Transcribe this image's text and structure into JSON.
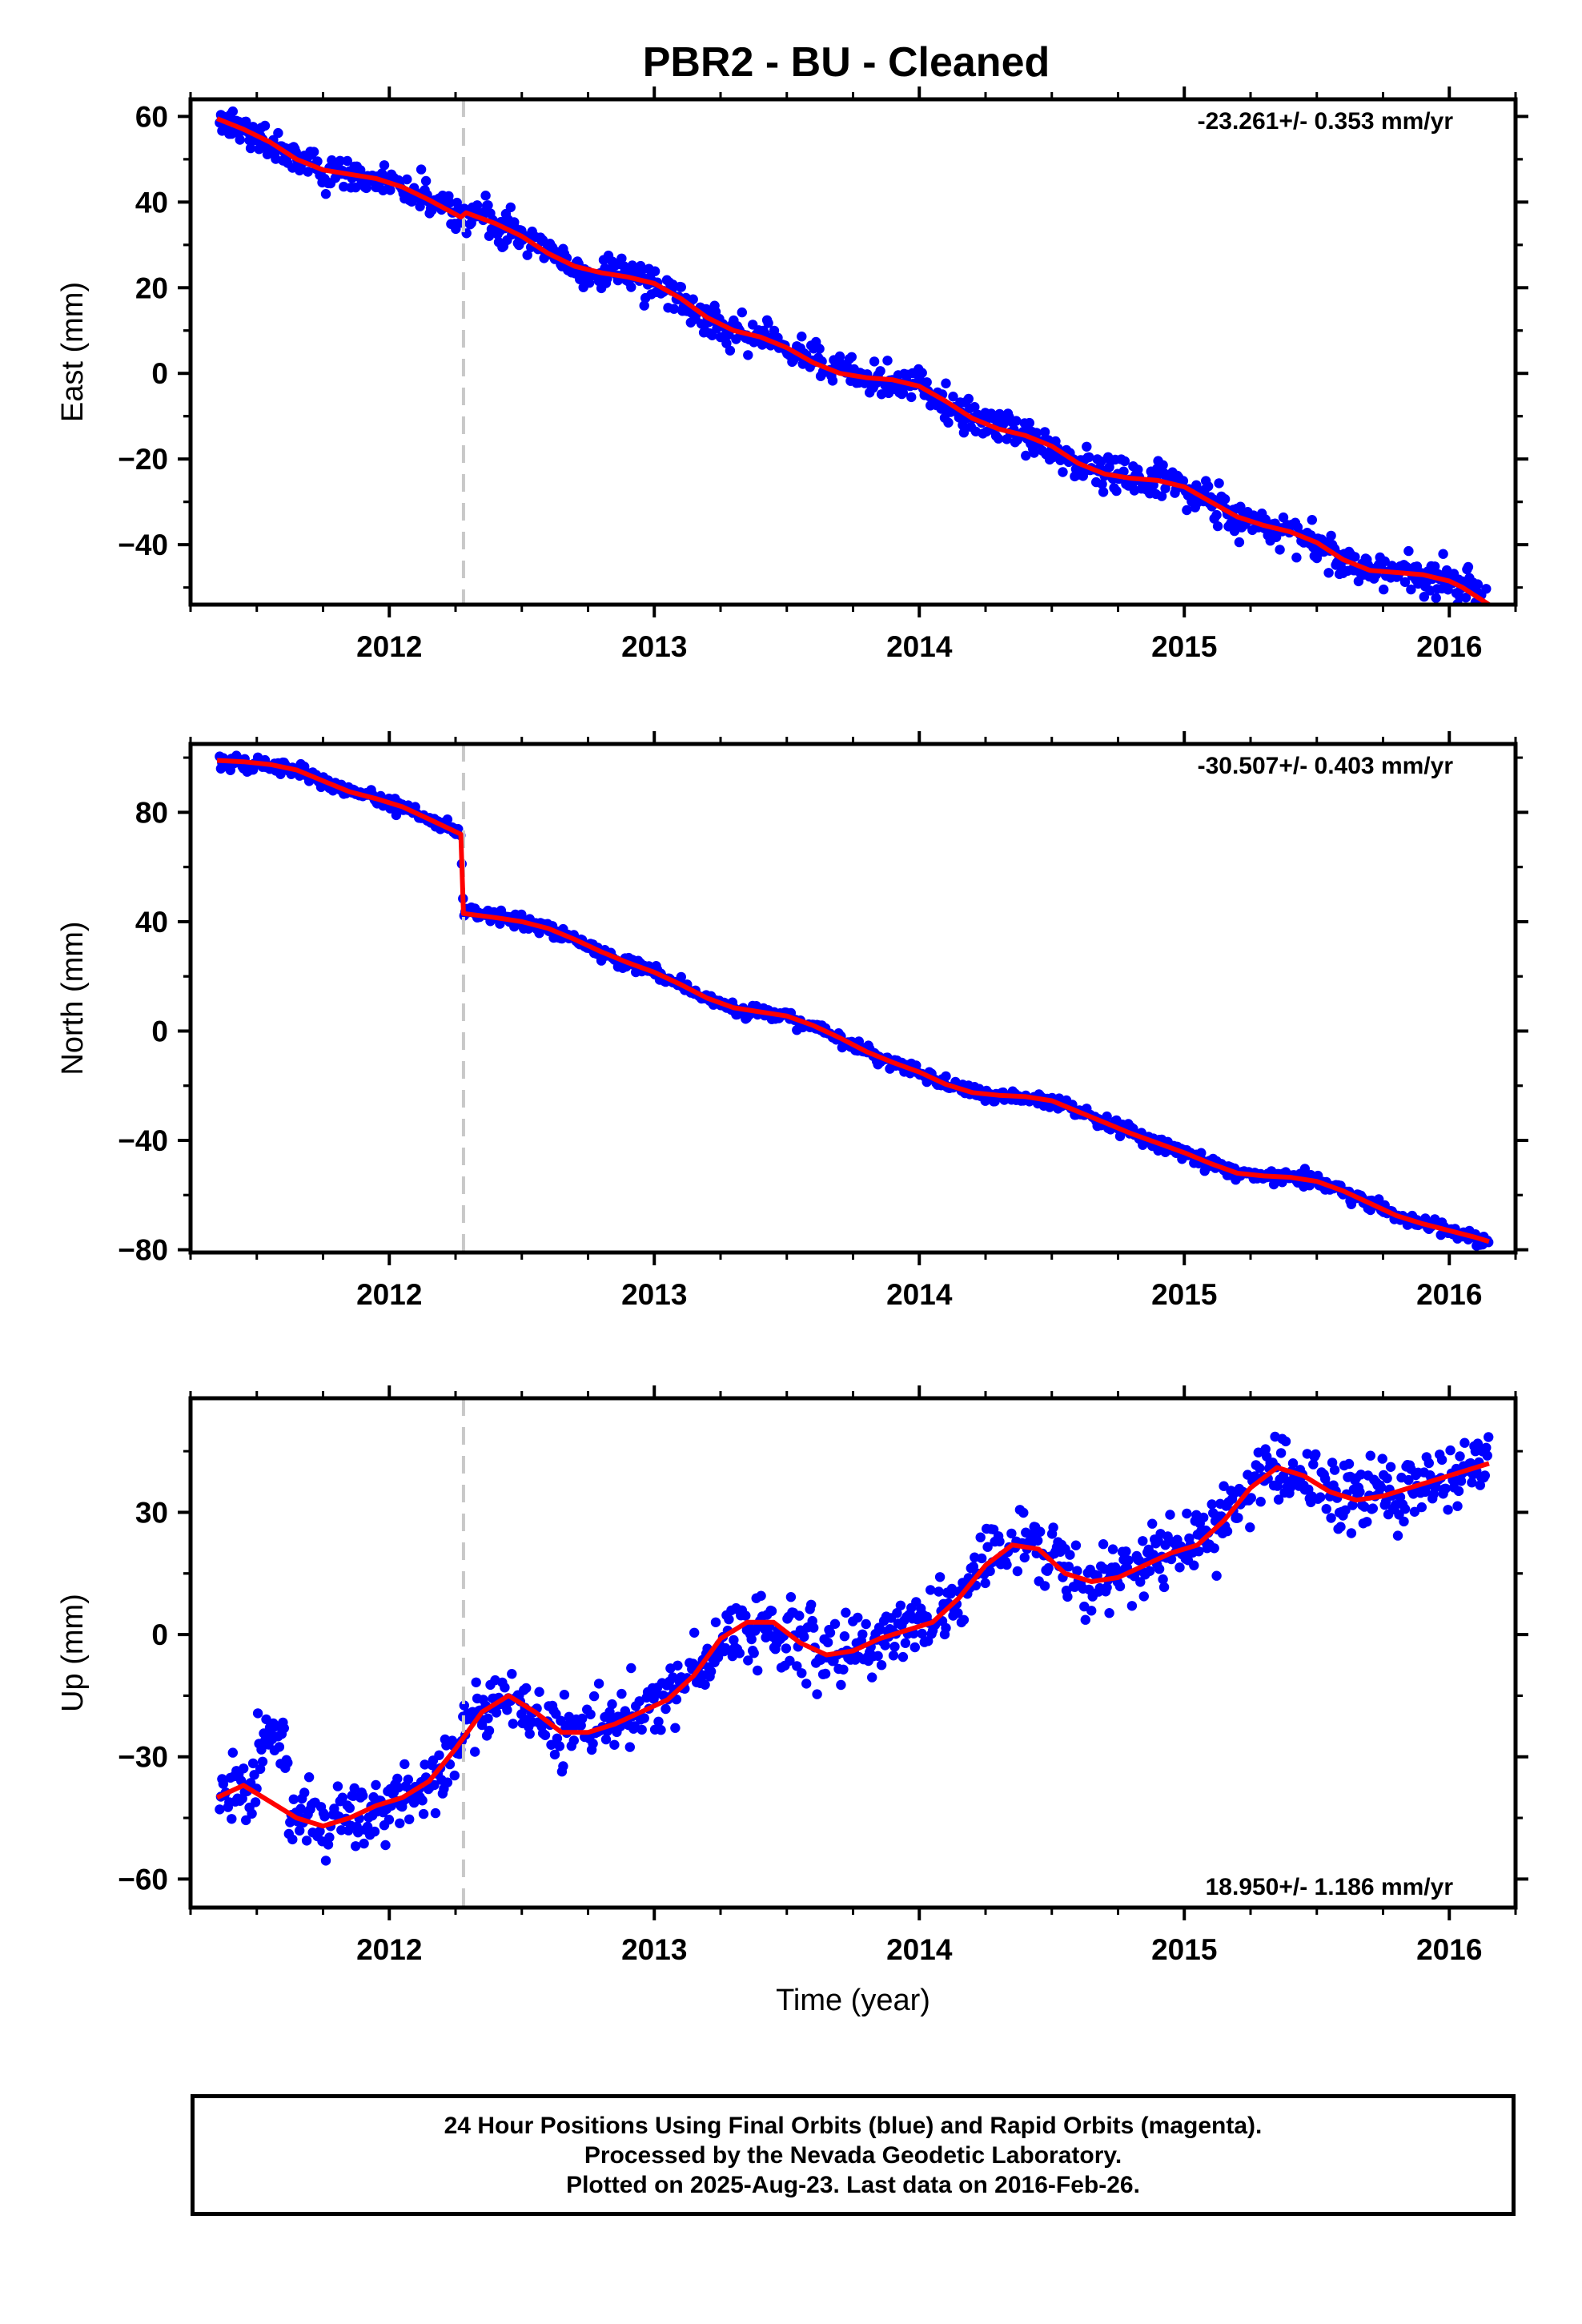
{
  "title": "PBR2  - BU - Cleaned",
  "colors": {
    "final_orbits": "#0000ff",
    "model_fit": "#ff0000",
    "event_line": "#c8c8c8",
    "frame": "#000000"
  },
  "chart_data": [
    {
      "type": "scatter",
      "name": "east",
      "ylabel": "East (mm)",
      "rate_label": "-23.261+/- 0.353 mm/yr",
      "rate_position": "top-right",
      "xlim": [
        2011.25,
        2016.25
      ],
      "ylim": [
        -54,
        64
      ],
      "yticks": [
        -40,
        -20,
        0,
        20,
        40,
        60
      ],
      "xticks": [
        2012,
        2013,
        2014,
        2015,
        2016
      ],
      "tick_labels": {
        "y": [
          "−40",
          "−20",
          "0",
          "20",
          "40",
          "60"
        ],
        "x": [
          "2012",
          "2013",
          "2014",
          "2015",
          "2016"
        ]
      },
      "event_line_x": 2012.28,
      "series": [
        {
          "role": "model_fit",
          "x": [
            2011.35,
            2011.45,
            2011.55,
            2011.65,
            2011.75,
            2011.85,
            2011.95,
            2012.05,
            2012.15,
            2012.27,
            2012.29,
            2012.4,
            2012.5,
            2012.6,
            2012.7,
            2012.8,
            2012.9,
            2013.0,
            2013.1,
            2013.2,
            2013.3,
            2013.4,
            2013.5,
            2013.6,
            2013.7,
            2013.8,
            2013.9,
            2014.0,
            2014.1,
            2014.2,
            2014.3,
            2014.4,
            2014.5,
            2014.6,
            2014.7,
            2014.8,
            2014.9,
            2015.0,
            2015.1,
            2015.2,
            2015.3,
            2015.4,
            2015.5,
            2015.6,
            2015.7,
            2015.8,
            2015.9,
            2016.0,
            2016.05,
            2016.1,
            2016.15
          ],
          "y": [
            59.5,
            57.0,
            54.0,
            50.0,
            47.5,
            46.5,
            45.5,
            43.5,
            40.5,
            36.5,
            37.5,
            35.0,
            32.0,
            28.0,
            25.0,
            23.5,
            22.5,
            21.0,
            17.5,
            13.0,
            10.0,
            8.5,
            6.0,
            2.5,
            0.0,
            -1.0,
            -1.5,
            -3.0,
            -6.5,
            -10.5,
            -13.0,
            -14.5,
            -17.0,
            -21.0,
            -23.5,
            -24.5,
            -25.0,
            -26.5,
            -30.0,
            -33.5,
            -35.5,
            -37.0,
            -39.5,
            -43.5,
            -46.0,
            -46.5,
            -47.0,
            -48.5,
            -50.0,
            -52.0,
            -54.0
          ]
        },
        {
          "role": "final_orbits",
          "x_start": 2011.36,
          "x_end": 2016.15,
          "scatter_mm": 2.3
        }
      ]
    },
    {
      "type": "scatter",
      "name": "north",
      "ylabel": "North (mm)",
      "rate_label": "-30.507+/- 0.403 mm/yr",
      "rate_position": "top-right",
      "xlim": [
        2011.25,
        2016.25
      ],
      "ylim": [
        -81,
        105
      ],
      "yticks": [
        -80,
        -40,
        0,
        40,
        80
      ],
      "xticks": [
        2012,
        2013,
        2014,
        2015,
        2016
      ],
      "tick_labels": {
        "y": [
          "−80",
          "−40",
          "0",
          "40",
          "80"
        ],
        "x": [
          "2012",
          "2013",
          "2014",
          "2015",
          "2016"
        ]
      },
      "event_line_x": 2012.28,
      "series": [
        {
          "role": "model_fit",
          "x": [
            2011.35,
            2011.45,
            2011.55,
            2011.65,
            2011.75,
            2011.85,
            2011.95,
            2012.05,
            2012.15,
            2012.27,
            2012.28,
            2012.4,
            2012.5,
            2012.6,
            2012.7,
            2012.8,
            2012.9,
            2013.0,
            2013.1,
            2013.2,
            2013.3,
            2013.4,
            2013.5,
            2013.6,
            2013.7,
            2013.8,
            2013.9,
            2014.0,
            2014.1,
            2014.2,
            2014.3,
            2014.4,
            2014.5,
            2014.6,
            2014.7,
            2014.8,
            2014.9,
            2015.0,
            2015.1,
            2015.2,
            2015.3,
            2015.4,
            2015.5,
            2015.6,
            2015.7,
            2015.8,
            2015.9,
            2016.0,
            2016.1,
            2016.15
          ],
          "y": [
            99.0,
            98.5,
            97.5,
            95.5,
            91.5,
            87.5,
            85.0,
            82.0,
            77.5,
            72.0,
            43.0,
            41.5,
            40.0,
            37.5,
            33.5,
            29.0,
            25.0,
            21.5,
            17.0,
            12.0,
            8.5,
            7.0,
            5.5,
            2.0,
            -2.5,
            -7.5,
            -11.5,
            -15.0,
            -19.5,
            -22.5,
            -23.5,
            -24.0,
            -25.5,
            -29.5,
            -33.5,
            -37.5,
            -41.0,
            -44.5,
            -48.5,
            -52.0,
            -53.0,
            -53.5,
            -55.0,
            -58.5,
            -63.0,
            -67.5,
            -70.5,
            -73.0,
            -75.5,
            -77.0
          ]
        },
        {
          "role": "final_orbits",
          "x_start": 2011.36,
          "x_end": 2016.15,
          "scatter_mm": 1.4
        }
      ]
    },
    {
      "type": "scatter",
      "name": "up",
      "ylabel": "Up (mm)",
      "rate_label": "18.950+/- 1.186 mm/yr",
      "rate_position": "bottom-right",
      "xlabel": "Time (year)",
      "xlim": [
        2011.25,
        2016.25
      ],
      "ylim": [
        -67,
        58
      ],
      "yticks": [
        -60,
        -30,
        0,
        30
      ],
      "xticks": [
        2012,
        2013,
        2014,
        2015,
        2016
      ],
      "tick_labels": {
        "y": [
          "−60",
          "−30",
          "0",
          "30"
        ],
        "x": [
          "2012",
          "2013",
          "2014",
          "2015",
          "2016"
        ]
      },
      "event_line_x": 2012.28,
      "series": [
        {
          "role": "model_fit",
          "x": [
            2011.35,
            2011.45,
            2011.55,
            2011.65,
            2011.75,
            2011.85,
            2011.95,
            2012.05,
            2012.15,
            2012.25,
            2012.35,
            2012.45,
            2012.55,
            2012.65,
            2012.75,
            2012.85,
            2012.95,
            2013.05,
            2013.15,
            2013.25,
            2013.35,
            2013.45,
            2013.55,
            2013.65,
            2013.75,
            2013.85,
            2013.95,
            2014.05,
            2014.15,
            2014.25,
            2014.35,
            2014.45,
            2014.55,
            2014.65,
            2014.75,
            2014.85,
            2014.95,
            2015.05,
            2015.15,
            2015.25,
            2015.35,
            2015.45,
            2015.55,
            2015.65,
            2015.75,
            2015.85,
            2015.95,
            2016.05,
            2016.15
          ],
          "y": [
            -40,
            -37,
            -41,
            -45,
            -47,
            -45,
            -42,
            -40,
            -36,
            -28,
            -19,
            -15,
            -19,
            -24,
            -24,
            -22,
            -19,
            -16,
            -10,
            -1,
            3,
            3,
            -2,
            -5,
            -4,
            -1,
            1,
            3,
            9,
            17,
            22,
            21,
            15,
            13,
            14,
            17,
            20,
            22,
            28,
            36,
            41,
            39,
            35,
            33,
            34,
            36,
            38,
            40,
            42
          ]
        },
        {
          "role": "final_orbits",
          "x_start": 2011.36,
          "x_end": 2016.15,
          "scatter_mm": 4.5
        }
      ]
    }
  ],
  "footer": {
    "line1": "24 Hour Positions Using Final Orbits (blue) and Rapid Orbits (magenta).",
    "line2": "Processed by the Nevada Geodetic Laboratory.",
    "line3": "Plotted on 2025-Aug-23. Last data on 2016-Feb-26."
  }
}
